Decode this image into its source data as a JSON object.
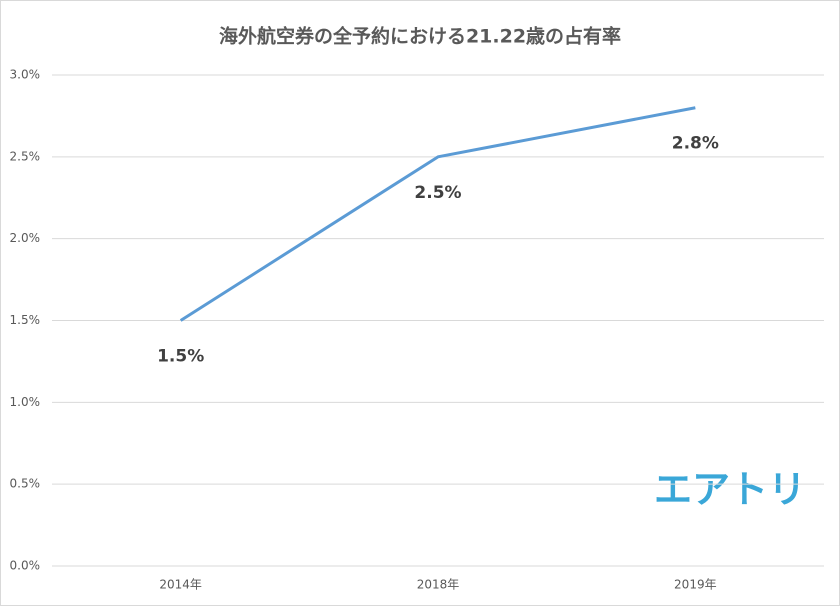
{
  "chart_data": {
    "type": "line",
    "title": "海外航空券の全予約における21.22歳の占有率",
    "categories": [
      "2014年",
      "2018年",
      "2019年"
    ],
    "values": [
      1.5,
      2.5,
      2.8
    ],
    "value_labels": [
      "1.5%",
      "2.5%",
      "2.8%"
    ],
    "color": "#5b9bd5",
    "ylim": [
      0,
      3
    ],
    "yticks": [
      {
        "value": 0,
        "label": "0.0%"
      },
      {
        "value": 0.5,
        "label": "0.5%"
      },
      {
        "value": 1,
        "label": "1.0%"
      },
      {
        "value": 1.5,
        "label": "1.5%"
      },
      {
        "value": 2,
        "label": "2.0%"
      },
      {
        "value": 2.5,
        "label": "2.5%"
      },
      {
        "value": 3,
        "label": "3.0%"
      }
    ],
    "grid": true,
    "logo": "エアトリ"
  }
}
